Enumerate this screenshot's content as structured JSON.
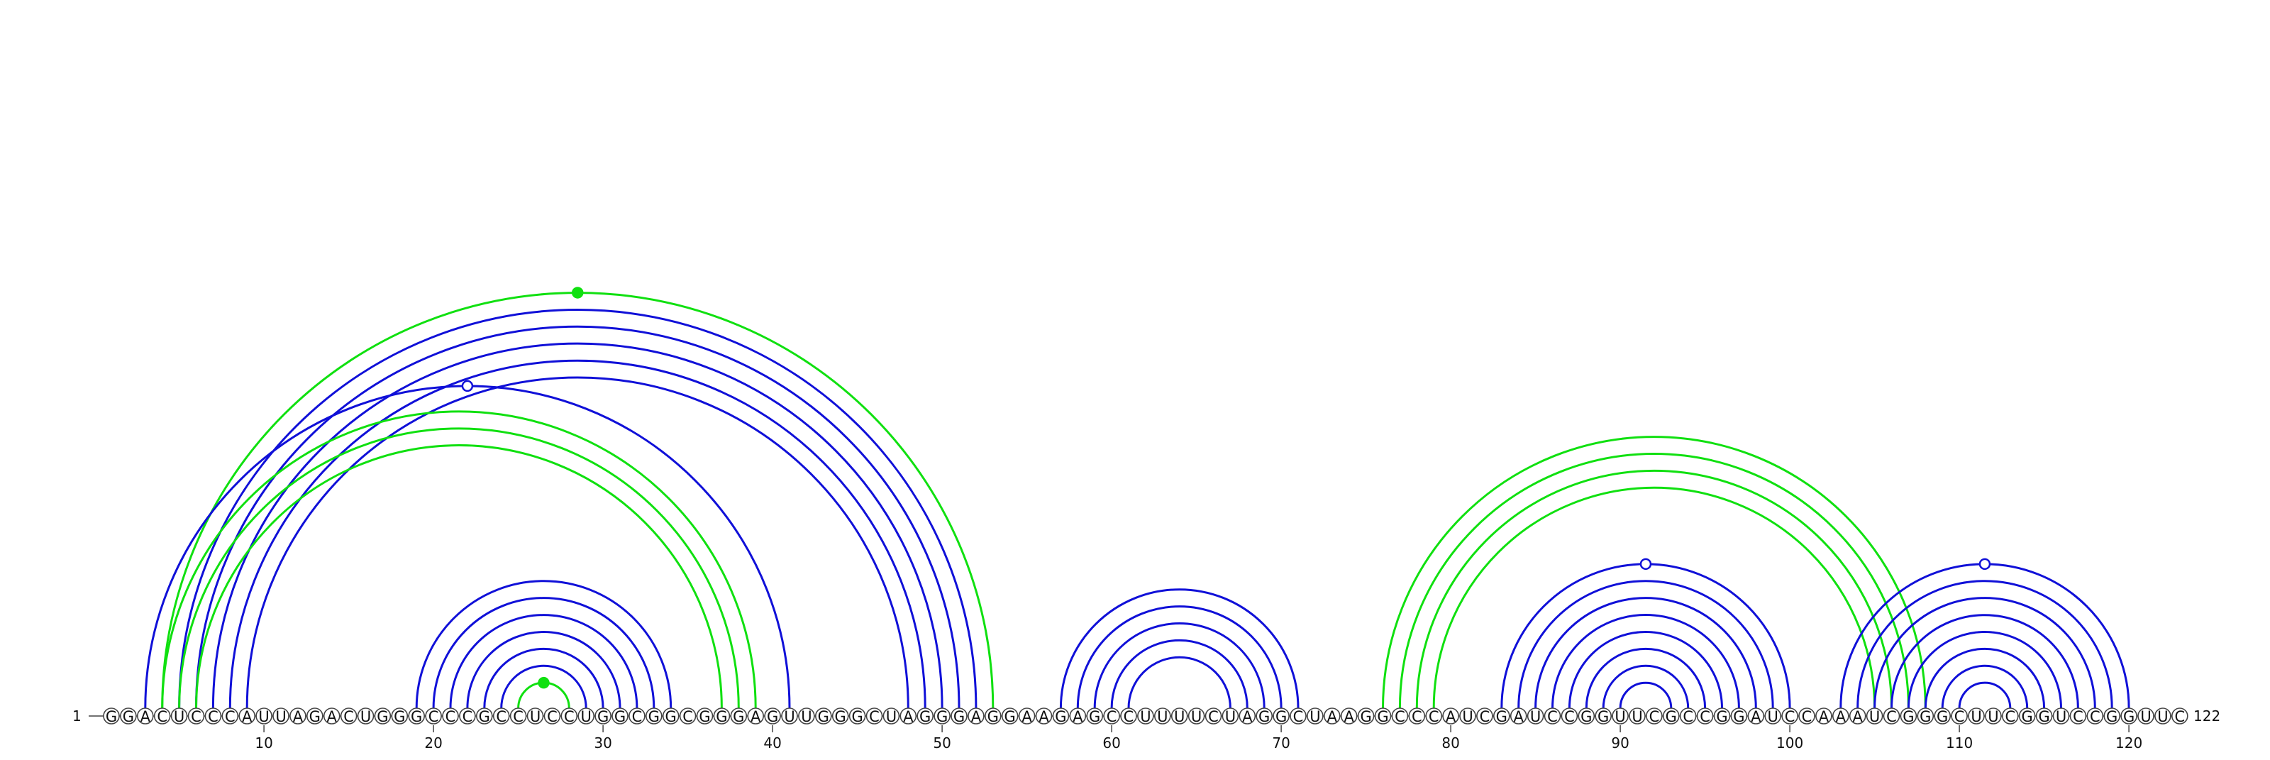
{
  "diagram": {
    "type": "RNA arc diagram",
    "sequence": "GGACUCCCAUUAGACUGGGCCCGCCUCCUGGCGGCGGGAGUUGGGCUAGGGAGGAAGAGCCUUUUCUAGGCUAAGGCCCAUCGAUCCGGUUCGCCGGAUCCAAAUCGGGCUUCGGUCCGGUUC",
    "start_label": "1",
    "end_label": "122",
    "tick_labels": [
      "10",
      "20",
      "30",
      "40",
      "50",
      "60",
      "70",
      "80",
      "90",
      "100",
      "110",
      "120"
    ],
    "colors": {
      "blue": "#1010d8",
      "green": "#10e010",
      "circle_stroke": "#444444",
      "text": "#111111"
    },
    "arc_groups": [
      {
        "name": "long-range-helix-a",
        "color": "green",
        "width": 2,
        "pairs": [
          [
            4,
            53
          ]
        ],
        "marker": "filled"
      },
      {
        "name": "long-range-helix-b",
        "color": "blue",
        "width": 3,
        "pairs": [
          [
            5,
            52
          ],
          [
            6,
            51
          ],
          [
            7,
            50
          ],
          [
            8,
            49
          ],
          [
            9,
            48
          ]
        ]
      },
      {
        "name": "crossing-arc",
        "color": "blue",
        "width": 3,
        "pairs": [
          [
            3,
            41
          ]
        ],
        "marker": "open"
      },
      {
        "name": "pseudoknot-stem",
        "color": "green",
        "width": 4,
        "pairs": [
          [
            4,
            39
          ],
          [
            5,
            38
          ],
          [
            6,
            37
          ]
        ]
      },
      {
        "name": "hairpin-1",
        "color": "blue",
        "width": 3,
        "pairs": [
          [
            19,
            34
          ],
          [
            20,
            33
          ],
          [
            21,
            32
          ],
          [
            22,
            31
          ],
          [
            23,
            30
          ],
          [
            24,
            29
          ]
        ]
      },
      {
        "name": "hairpin-1-loop",
        "color": "green",
        "width": 3,
        "pairs": [
          [
            25,
            28
          ]
        ],
        "marker": "filled"
      },
      {
        "name": "hairpin-2",
        "color": "blue",
        "width": 3,
        "pairs": [
          [
            57,
            71
          ],
          [
            58,
            70
          ],
          [
            59,
            69
          ],
          [
            60,
            68
          ],
          [
            61,
            67
          ]
        ]
      },
      {
        "name": "green-stem-2",
        "color": "green",
        "width": 5,
        "pairs": [
          [
            76,
            108
          ],
          [
            77,
            107
          ],
          [
            78,
            106
          ],
          [
            79,
            105
          ]
        ]
      },
      {
        "name": "hairpin-3",
        "color": "blue",
        "width": 3,
        "pairs": [
          [
            83,
            100
          ],
          [
            84,
            99
          ],
          [
            85,
            98
          ],
          [
            86,
            97
          ],
          [
            87,
            96
          ],
          [
            88,
            95
          ],
          [
            89,
            94
          ],
          [
            90,
            93
          ]
        ],
        "marker": "open"
      },
      {
        "name": "hairpin-4",
        "color": "blue",
        "width": 3,
        "pairs": [
          [
            103,
            120
          ],
          [
            104,
            119
          ],
          [
            105,
            118
          ],
          [
            106,
            117
          ],
          [
            107,
            116
          ],
          [
            108,
            115
          ],
          [
            109,
            114
          ],
          [
            110,
            113
          ]
        ],
        "marker": "open"
      }
    ]
  }
}
